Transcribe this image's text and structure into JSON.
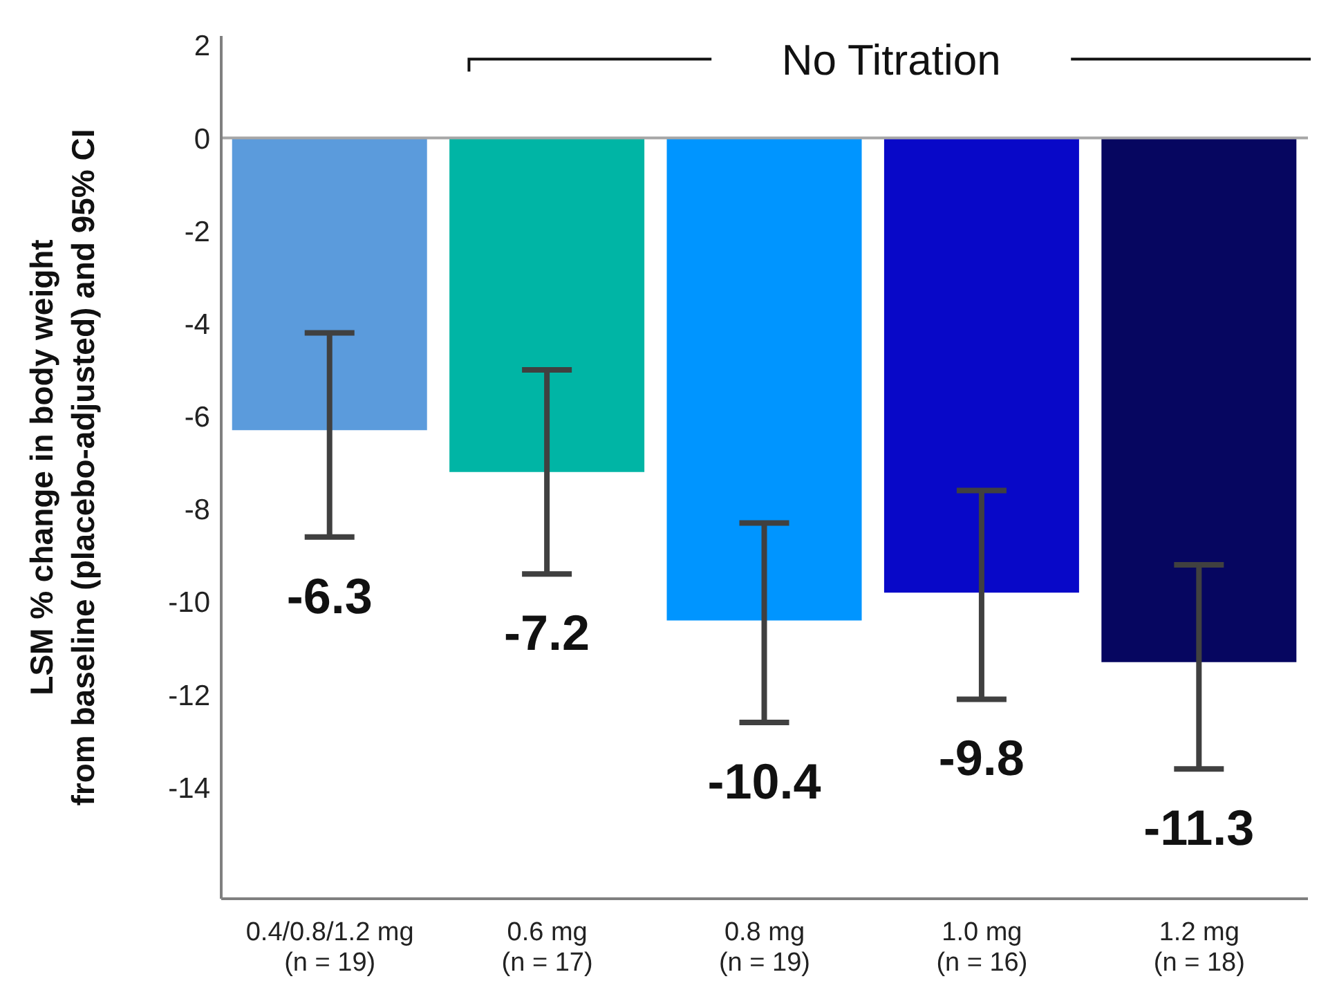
{
  "chart_data": {
    "type": "bar",
    "ylabel": "LSM % change in body weight from baseline (placebo-adjusted) and 95% CI",
    "categories": [
      "0.4/0.8/1.2 mg\n(n = 19)",
      "0.6 mg\n(n = 17)",
      "0.8 mg\n(n = 19)",
      "1.0 mg\n(n = 16)",
      "1.2 mg\n(n = 18)"
    ],
    "values": [
      -6.3,
      -7.2,
      -10.4,
      -9.8,
      -11.3
    ],
    "colors": [
      "#5b9bdc",
      "#00b5a5",
      "#0095ff",
      "#0808c8",
      "#060660"
    ],
    "errors": [
      [
        -8.6,
        -4.2
      ],
      [
        -9.4,
        -5.0
      ],
      [
        -12.6,
        -8.3
      ],
      [
        -12.1,
        -7.6
      ],
      [
        -13.6,
        -9.2
      ]
    ],
    "data_labels": true,
    "annotations": [
      "No Titration"
    ],
    "ref_lines": [
      {
        "axis": "y",
        "value": 0,
        "color": "#a6a6a6"
      }
    ],
    "ylim": [
      -16.4,
      2.2
    ],
    "yticks": [
      2,
      0,
      -2,
      -4,
      -6,
      -8,
      -10,
      -12,
      -14
    ],
    "grid": false,
    "legend": false
  }
}
